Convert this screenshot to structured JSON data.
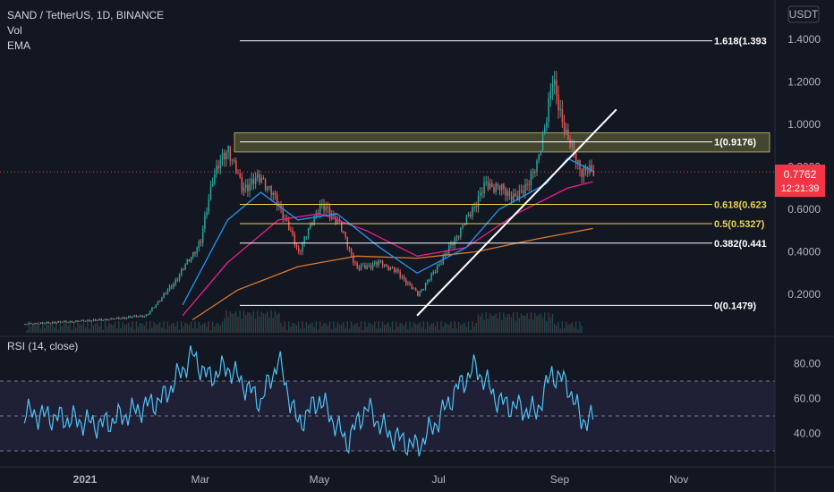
{
  "chart_data": [
    {
      "type": "candlestick",
      "title": "SAND / TetherUS, 1D, BINANCE",
      "indicators": [
        "Vol",
        "EMA"
      ],
      "currency_label": "USDT",
      "yticks": [
        "1.4000",
        "1.2000",
        "1.0000",
        "0.8000",
        "0.6000",
        "0.4000",
        "0.2000"
      ],
      "xticks": [
        "2021",
        "Mar",
        "May",
        "Jul",
        "Sep",
        "Nov"
      ],
      "last_price": "0.7762",
      "countdown": "12:21:39",
      "fib_levels": [
        {
          "label": "1.618(1.393",
          "price": 1.393,
          "color": "#ffffff"
        },
        {
          "label": "1(0.9176)",
          "price": 0.9176,
          "color": "#ffffff"
        },
        {
          "label": "0.618(0.623",
          "price": 0.623,
          "color": "#e8d44d"
        },
        {
          "label": "0.5(0.5327)",
          "price": 0.5327,
          "color": "#e8d44d"
        },
        {
          "label": "0.382(0.441",
          "price": 0.441,
          "color": "#ffffff"
        },
        {
          "label": "0(0.1479)",
          "price": 0.1479,
          "color": "#ffffff"
        }
      ],
      "resistance_zone": [
        0.87,
        0.96
      ],
      "trendline": {
        "from": [
          "2021-06-20",
          0.1
        ],
        "to": [
          "2021-09-30",
          1.07
        ]
      },
      "price_path": [
        [
          "2020-12-01",
          0.06
        ],
        [
          "2021-01-10",
          0.08
        ],
        [
          "2021-02-01",
          0.1
        ],
        [
          "2021-02-15",
          0.25
        ],
        [
          "2021-03-01",
          0.45
        ],
        [
          "2021-03-07",
          0.75
        ],
        [
          "2021-03-15",
          0.89
        ],
        [
          "2021-03-22",
          0.7
        ],
        [
          "2021-04-01",
          0.75
        ],
        [
          "2021-04-10",
          0.62
        ],
        [
          "2021-04-20",
          0.4
        ],
        [
          "2021-05-01",
          0.62
        ],
        [
          "2021-05-10",
          0.55
        ],
        [
          "2021-05-20",
          0.32
        ],
        [
          "2021-06-01",
          0.35
        ],
        [
          "2021-06-10",
          0.3
        ],
        [
          "2021-06-20",
          0.2
        ],
        [
          "2021-06-28",
          0.3
        ],
        [
          "2021-07-05",
          0.4
        ],
        [
          "2021-07-15",
          0.55
        ],
        [
          "2021-07-25",
          0.72
        ],
        [
          "2021-08-01",
          0.7
        ],
        [
          "2021-08-10",
          0.65
        ],
        [
          "2021-08-20",
          0.8
        ],
        [
          "2021-08-28",
          1.2
        ],
        [
          "2021-09-05",
          0.92
        ],
        [
          "2021-09-12",
          0.78
        ],
        [
          "2021-09-18",
          0.7762
        ]
      ],
      "ema_fast": [
        [
          "2021-02-20",
          0.15
        ],
        [
          "2021-03-15",
          0.55
        ],
        [
          "2021-04-01",
          0.68
        ],
        [
          "2021-04-20",
          0.55
        ],
        [
          "2021-05-10",
          0.58
        ],
        [
          "2021-06-01",
          0.42
        ],
        [
          "2021-06-20",
          0.3
        ],
        [
          "2021-07-15",
          0.42
        ],
        [
          "2021-08-01",
          0.6
        ],
        [
          "2021-08-25",
          0.72
        ],
        [
          "2021-09-05",
          0.84
        ],
        [
          "2021-09-18",
          0.78
        ]
      ],
      "ema_mid": [
        [
          "2021-02-20",
          0.1
        ],
        [
          "2021-03-15",
          0.35
        ],
        [
          "2021-04-10",
          0.55
        ],
        [
          "2021-05-01",
          0.58
        ],
        [
          "2021-05-25",
          0.5
        ],
        [
          "2021-06-20",
          0.38
        ],
        [
          "2021-07-15",
          0.42
        ],
        [
          "2021-08-10",
          0.58
        ],
        [
          "2021-09-05",
          0.7
        ],
        [
          "2021-09-18",
          0.73
        ]
      ],
      "ema_slow": [
        [
          "2021-02-25",
          0.08
        ],
        [
          "2021-03-20",
          0.22
        ],
        [
          "2021-04-20",
          0.33
        ],
        [
          "2021-05-20",
          0.38
        ],
        [
          "2021-06-20",
          0.37
        ],
        [
          "2021-07-20",
          0.4
        ],
        [
          "2021-08-20",
          0.46
        ],
        [
          "2021-09-18",
          0.51
        ]
      ]
    },
    {
      "type": "line",
      "title": "RSI (14, close)",
      "yticks": [
        "80.00",
        "60.00",
        "40.00"
      ],
      "band": [
        30,
        70
      ],
      "values": [
        [
          "2020-12-01",
          52
        ],
        [
          "2021-01-10",
          45
        ],
        [
          "2021-02-10",
          60
        ],
        [
          "2021-02-25",
          85
        ],
        [
          "2021-03-05",
          72
        ],
        [
          "2021-03-15",
          78
        ],
        [
          "2021-04-01",
          58
        ],
        [
          "2021-04-10",
          82
        ],
        [
          "2021-04-20",
          45
        ],
        [
          "2021-05-01",
          60
        ],
        [
          "2021-05-15",
          35
        ],
        [
          "2021-05-25",
          55
        ],
        [
          "2021-06-05",
          40
        ],
        [
          "2021-06-20",
          32
        ],
        [
          "2021-07-01",
          48
        ],
        [
          "2021-07-10",
          65
        ],
        [
          "2021-07-20",
          78
        ],
        [
          "2021-08-01",
          58
        ],
        [
          "2021-08-10",
          55
        ],
        [
          "2021-08-20",
          52
        ],
        [
          "2021-08-28",
          75
        ],
        [
          "2021-09-05",
          68
        ],
        [
          "2021-09-12",
          48
        ],
        [
          "2021-09-18",
          48
        ]
      ]
    }
  ]
}
